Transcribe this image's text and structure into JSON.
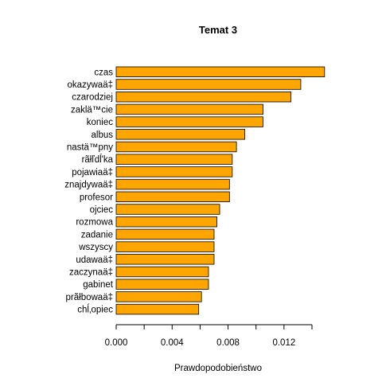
{
  "chart_data": {
    "type": "bar",
    "orientation": "horizontal",
    "title": "Temat 3",
    "xlabel": "Prawdopodobieństwo",
    "ylabel": "",
    "bar_color": "#FFA500",
    "bar_edge_color": "#000000",
    "xlim": [
      0,
      0.014
    ],
    "xticks": [
      0.0,
      0.002,
      0.004,
      0.006,
      0.008,
      0.01,
      0.012,
      0.014
    ],
    "xtick_labels": [
      "0.000",
      "",
      "0.004",
      "",
      "0.008",
      "",
      "0.012",
      ""
    ],
    "grid": false,
    "categories": [
      "czas",
      "okazywaä‡",
      "czarodziej",
      "zaklä™cie",
      "koniec",
      "albus",
      "nastä™pny",
      "rãłľdĺ'ka",
      "pojawiaä‡",
      "znajdywaä‡",
      "profesor",
      "ojciec",
      "rozmowa",
      "zadanie",
      "wszyscy",
      "udawaä‡",
      "zaczynaä‡",
      "gabinet",
      "prãłbowaä‡",
      "chĺ‚opiec"
    ],
    "values": [
      0.0149,
      0.0132,
      0.0125,
      0.0105,
      0.0105,
      0.0092,
      0.0086,
      0.0083,
      0.0083,
      0.0081,
      0.0081,
      0.0074,
      0.0072,
      0.007,
      0.007,
      0.007,
      0.0066,
      0.0066,
      0.0061,
      0.0059
    ]
  }
}
